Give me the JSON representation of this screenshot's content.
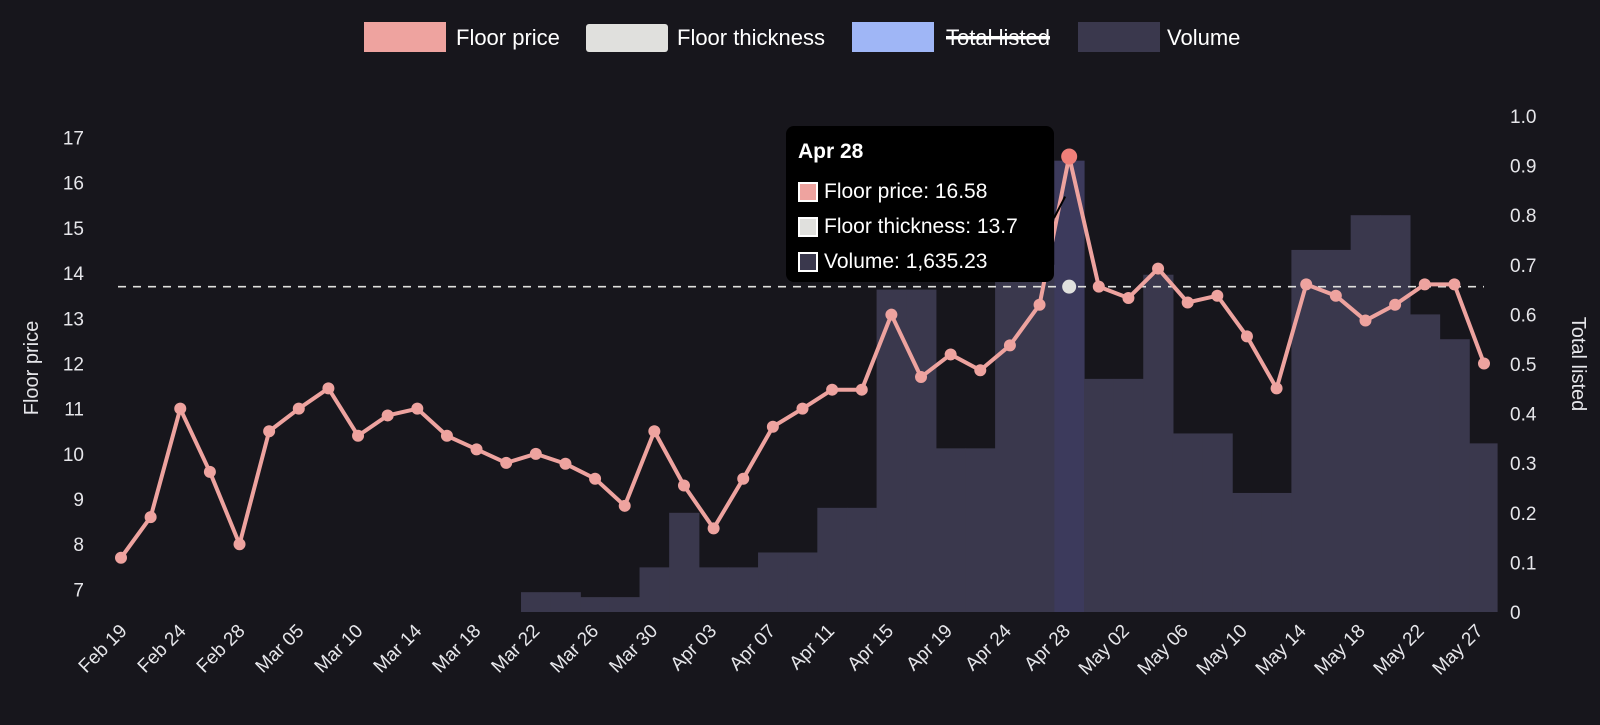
{
  "colors": {
    "background": "#17161c",
    "floor_price": "#eea39f",
    "floor_price_marker": "#f07f79",
    "floor_thickness": "#e0e0dd",
    "total_listed": "#9fb6f6",
    "volume": "#3a384d",
    "volume_highlight": "#3c3a5c",
    "text": "#e6e6ea"
  },
  "tooltip": {
    "title": "Apr 28",
    "rows": [
      {
        "label": "Floor price: 16.58",
        "color": "#eea39f"
      },
      {
        "label": "Floor thickness: 13.7",
        "color": "#e0e0dd"
      },
      {
        "label": "Volume: 1,635.23",
        "color": "#3a384d"
      }
    ]
  },
  "chart_data": {
    "type": "line",
    "legend": {
      "position": "top-center",
      "items": [
        {
          "name": "Floor price",
          "color": "#eea39f",
          "hidden": false
        },
        {
          "name": "Floor thickness",
          "color": "#e0e0dd",
          "hidden": false
        },
        {
          "name": "Total listed",
          "color": "#9fb6f6",
          "hidden": true
        },
        {
          "name": "Volume",
          "color": "#3a384d",
          "hidden": false
        }
      ]
    },
    "ylabel_left": "Floor price",
    "ylabel_right": "Total listed",
    "y_left_ticks": [
      "7",
      "8",
      "9",
      "10",
      "11",
      "12",
      "13",
      "14",
      "15",
      "16",
      "17"
    ],
    "y_left_range": [
      6.5,
      17.3
    ],
    "y_right_ticks": [
      "0",
      "0.1",
      "0.2",
      "0.3",
      "0.4",
      "0.5",
      "0.6",
      "0.7",
      "0.8",
      "0.9",
      "1.0"
    ],
    "y_right_range": [
      0,
      1.0
    ],
    "x_tick_labels": [
      "Feb 19",
      "Feb 24",
      "Feb 28",
      "Mar 05",
      "Mar 10",
      "Mar 14",
      "Mar 18",
      "Mar 22",
      "Mar 26",
      "Mar 30",
      "Apr 03",
      "Apr 07",
      "Apr 11",
      "Apr 15",
      "Apr 19",
      "Apr 24",
      "Apr 28",
      "May 02",
      "May 06",
      "May 10",
      "May 14",
      "May 18",
      "May 22",
      "May 27"
    ],
    "floor_thickness_reference": 13.7,
    "highlight_label": "Apr 28",
    "highlight_index": 32,
    "series": [
      {
        "name": "Floor price",
        "type": "line",
        "axis": "left",
        "values": [
          7.7,
          8.6,
          11.0,
          9.6,
          8.0,
          10.5,
          11.0,
          11.45,
          10.4,
          10.85,
          11.0,
          10.4,
          10.1,
          9.8,
          10.0,
          9.78,
          9.45,
          8.85,
          10.5,
          9.3,
          8.35,
          9.45,
          10.6,
          11.0,
          11.42,
          11.42,
          13.08,
          11.7,
          12.2,
          11.85,
          12.4,
          13.3,
          16.58,
          13.7,
          13.45,
          14.1,
          13.35,
          13.5,
          12.6,
          11.45,
          13.75,
          13.5,
          12.95,
          13.3,
          13.75,
          13.75,
          12.0
        ]
      },
      {
        "name": "Volume",
        "type": "bar",
        "axis": "right",
        "values": [
          0,
          0,
          0,
          0,
          0,
          0,
          0,
          0,
          0,
          0,
          0,
          0,
          0,
          0,
          0.04,
          0.04,
          0.03,
          0.03,
          0.09,
          0.2,
          0.09,
          0.09,
          0.12,
          0.12,
          0.21,
          0.21,
          0.65,
          0.65,
          0.33,
          0.33,
          0.7,
          0.7,
          0.91,
          0.47,
          0.47,
          0.68,
          0.36,
          0.36,
          0.24,
          0.24,
          0.73,
          0.73,
          0.8,
          0.8,
          0.6,
          0.55,
          0.34
        ]
      }
    ]
  }
}
